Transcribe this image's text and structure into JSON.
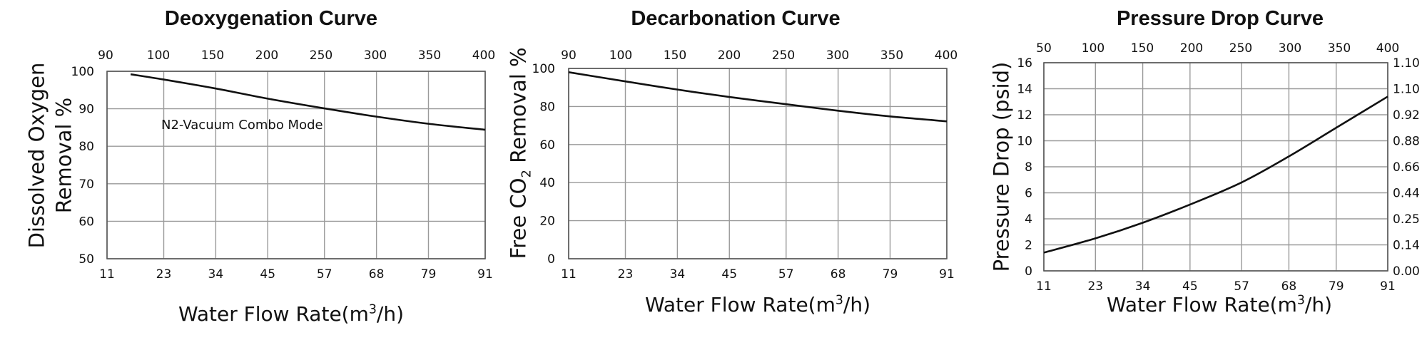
{
  "chart_data": [
    {
      "type": "line",
      "title": "Deoxygenation Curve",
      "xlabel_html": "Water Flow Rate(m<sup>3</sup>/h)",
      "xlabel": "Water Flow Rate(m3/h)",
      "ylabel_lines": [
        "Dissolved Oxygen",
        "Removal %"
      ],
      "annotation": "N2-Vacuum Combo Mode",
      "x_bottom_ticks": [
        "11",
        "23",
        "34",
        "45",
        "57",
        "68",
        "79",
        "91"
      ],
      "x_top_ticks": [
        "90",
        "100",
        "150",
        "200",
        "250",
        "300",
        "350",
        "400"
      ],
      "y_ticks": [
        "50",
        "60",
        "70",
        "80",
        "90",
        "100"
      ],
      "xlim": [
        11,
        91
      ],
      "ylim": [
        50,
        100
      ],
      "grid": true,
      "series": [
        {
          "x": [
            16,
            23,
            34,
            45,
            57,
            68,
            79,
            91
          ],
          "y": [
            99.2,
            97.8,
            95.4,
            92.7,
            90.1,
            87.9,
            86.0,
            84.4
          ]
        }
      ]
    },
    {
      "type": "line",
      "title": "Decarbonation Curve",
      "xlabel_html": "Water Flow Rate(m<sup>3</sup>/h)",
      "xlabel": "Water Flow Rate(m3/h)",
      "ylabel_html": "Free CO<sub>2</sub> Removal %",
      "ylabel": "Free CO2 Removal %",
      "x_bottom_ticks": [
        "11",
        "23",
        "34",
        "45",
        "57",
        "68",
        "79",
        "91"
      ],
      "x_top_ticks": [
        "90",
        "100",
        "150",
        "200",
        "250",
        "300",
        "350",
        "400"
      ],
      "y_ticks": [
        "0",
        "20",
        "40",
        "60",
        "80",
        "100"
      ],
      "xlim": [
        11,
        91
      ],
      "ylim": [
        0,
        100
      ],
      "grid": true,
      "series": [
        {
          "x": [
            11,
            23,
            34,
            45,
            57,
            68,
            79,
            91
          ],
          "y": [
            98.0,
            93.2,
            88.9,
            85.0,
            81.2,
            77.8,
            74.8,
            72.2
          ]
        }
      ]
    },
    {
      "type": "line",
      "title": "Pressure Drop Curve",
      "xlabel_html": "Water Flow Rate(m<sup>3</sup>/h)",
      "xlabel": "Water Flow Rate(m3/h)",
      "ylabel": "Pressure Drop (psid)",
      "x_bottom_ticks": [
        "11",
        "23",
        "34",
        "45",
        "57",
        "68",
        "79",
        "91"
      ],
      "x_top_ticks": [
        "50",
        "100",
        "150",
        "200",
        "250",
        "300",
        "350",
        "400"
      ],
      "y_ticks": [
        "0",
        "2",
        "4",
        "6",
        "8",
        "10",
        "12",
        "14",
        "16"
      ],
      "y_right_ticks": [
        "0.00",
        "0.14",
        "0.25",
        "0.44",
        "0.66",
        "0.88",
        "0.92",
        "1.10",
        "1.10"
      ],
      "xlim": [
        11,
        91
      ],
      "ylim": [
        0,
        16
      ],
      "grid": true,
      "series": [
        {
          "x": [
            11,
            23,
            34,
            45,
            57,
            68,
            79,
            91
          ],
          "y": [
            1.4,
            2.5,
            3.7,
            5.1,
            6.8,
            8.8,
            11.0,
            13.4
          ]
        }
      ]
    }
  ]
}
